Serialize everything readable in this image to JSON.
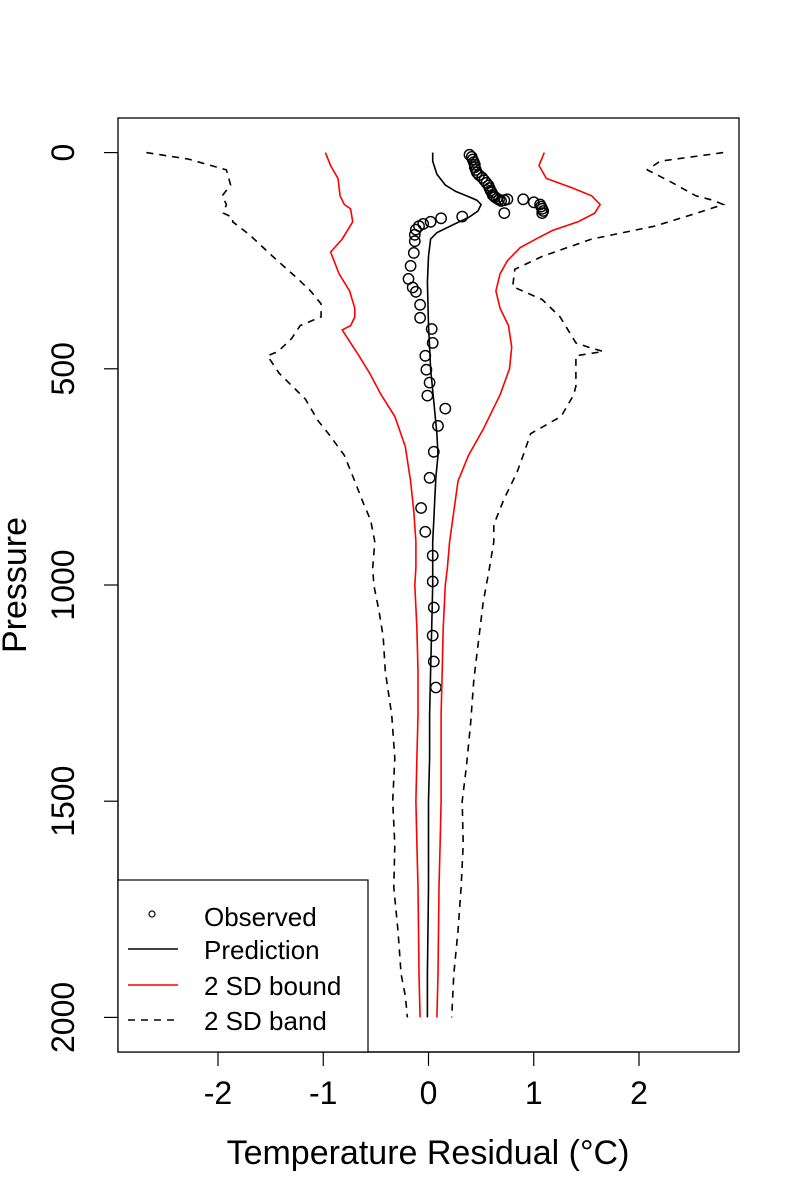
{
  "chart_data": {
    "type": "line",
    "title": "",
    "xlabel": "Temperature Residual (°C)",
    "ylabel": "Pressure",
    "xlim": [
      -2.95,
      2.95
    ],
    "ylim": [
      2080,
      -80
    ],
    "y_inverted": true,
    "grid": false,
    "legend_position": "bottom-left",
    "x_ticks": [
      -2,
      -1,
      0,
      1,
      2
    ],
    "x_tick_labels": [
      "-2",
      "-1",
      "0",
      "1",
      "2"
    ],
    "y_ticks": [
      0,
      500,
      1000,
      1500,
      2000
    ],
    "y_tick_labels": [
      "0",
      "500",
      "1000",
      "1500",
      "2000"
    ],
    "legend": [
      {
        "label": "Observed",
        "style": "point"
      },
      {
        "label": "Prediction",
        "style": "solid",
        "color": "#000000"
      },
      {
        "label": "2 SD bound",
        "style": "solid",
        "color": "#ff0000"
      },
      {
        "label": "2 SD band",
        "style": "dashed",
        "color": "#000000"
      }
    ],
    "series": [
      {
        "name": "Observed",
        "kind": "points",
        "color": "#000000",
        "x": [
          0.39,
          0.41,
          0.42,
          0.43,
          0.44,
          0.44,
          0.45,
          0.46,
          0.48,
          0.51,
          0.53,
          0.55,
          0.57,
          0.58,
          0.59,
          0.6,
          0.61,
          0.62,
          0.63,
          0.65,
          0.67,
          0.69,
          0.72,
          0.75,
          0.9,
          1.0,
          1.06,
          1.07,
          1.08,
          1.09,
          1.08,
          0.72,
          0.32,
          0.12,
          0.02,
          -0.05,
          -0.09,
          -0.12,
          -0.13,
          -0.13,
          -0.14,
          -0.17,
          -0.19,
          -0.15,
          -0.12,
          -0.08,
          -0.08,
          0.03,
          0.04,
          -0.03,
          -0.02,
          0.01,
          -0.01,
          0.16,
          0.09,
          0.05,
          0.01,
          -0.07,
          -0.03,
          0.04,
          0.04,
          0.05,
          0.04,
          0.05,
          0.07
        ],
        "y": [
          5,
          10,
          16,
          22,
          28,
          34,
          40,
          46,
          52,
          58,
          64,
          70,
          76,
          82,
          88,
          92,
          98,
          100,
          103,
          106,
          109,
          112,
          110,
          108,
          108,
          115,
          120,
          125,
          130,
          135,
          140,
          140,
          148,
          152,
          160,
          165,
          170,
          178,
          190,
          205,
          232,
          262,
          292,
          312,
          322,
          352,
          382,
          408,
          440,
          470,
          502,
          532,
          562,
          592,
          632,
          692,
          752,
          822,
          877,
          932,
          992,
          1052,
          1117,
          1177,
          1237
        ]
      },
      {
        "name": "Prediction",
        "kind": "line",
        "color": "#000000",
        "x": [
          0.04,
          0.04,
          0.08,
          0.16,
          0.26,
          0.36,
          0.46,
          0.5,
          0.47,
          0.38,
          0.25,
          0.08,
          0.02,
          0.0,
          -0.01,
          0.0,
          0.01,
          0.02,
          0.04,
          0.06,
          0.08,
          0.09,
          0.07,
          0.06,
          0.05,
          0.04,
          0.04,
          0.03,
          0.02,
          0.01,
          0.01,
          0.0,
          0.0,
          -0.01,
          -0.01
        ],
        "y": [
          0,
          20,
          50,
          75,
          90,
          100,
          110,
          120,
          135,
          150,
          165,
          185,
          200,
          240,
          300,
          400,
          450,
          500,
          550,
          600,
          650,
          700,
          750,
          800,
          850,
          900,
          1000,
          1100,
          1200,
          1300,
          1400,
          1500,
          1700,
          1900,
          2000
        ]
      },
      {
        "name": "2 SD bound",
        "kind": "line",
        "color": "#ff0000",
        "x": [
          -0.98,
          -0.93,
          -0.86,
          -0.84,
          -0.8,
          -0.74,
          -0.72,
          -0.82,
          -0.93,
          -0.85,
          -0.75,
          -0.7,
          -0.7,
          -0.74,
          -0.82,
          -0.74,
          -0.66,
          -0.56,
          -0.45,
          -0.32,
          -0.22,
          -0.17,
          -0.14,
          -0.12,
          -0.12,
          -0.13,
          -0.11,
          -0.1,
          -0.1,
          -0.11,
          -0.12,
          -0.11,
          -0.1,
          -0.09,
          -0.08
        ],
        "y": [
          0,
          30,
          60,
          100,
          120,
          130,
          160,
          200,
          230,
          280,
          320,
          360,
          380,
          400,
          410,
          440,
          470,
          510,
          560,
          610,
          680,
          760,
          830,
          900,
          960,
          1000,
          1100,
          1200,
          1300,
          1400,
          1500,
          1600,
          1700,
          1900,
          2000
        ]
      },
      {
        "name": "2 SD bound",
        "kind": "line",
        "color": "#ff0000",
        "x": [
          1.1,
          1.05,
          1.12,
          1.35,
          1.55,
          1.63,
          1.58,
          1.42,
          1.18,
          1.02,
          0.87,
          0.75,
          0.68,
          0.64,
          0.68,
          0.76,
          0.79,
          0.77,
          0.68,
          0.52,
          0.38,
          0.28,
          0.24,
          0.2,
          0.18,
          0.16,
          0.14,
          0.13,
          0.12,
          0.12,
          0.12,
          0.11,
          0.1,
          0.09,
          0.08
        ],
        "y": [
          0,
          30,
          60,
          80,
          100,
          120,
          140,
          160,
          180,
          200,
          220,
          250,
          280,
          320,
          360,
          400,
          450,
          500,
          560,
          640,
          700,
          760,
          830,
          900,
          960,
          1000,
          1100,
          1200,
          1300,
          1400,
          1500,
          1600,
          1700,
          1900,
          2000
        ]
      },
      {
        "name": "2 SD band",
        "kind": "line",
        "color": "#000000",
        "x": [
          -2.68,
          -2.28,
          -1.92,
          -1.88,
          -1.96,
          -1.92,
          -1.95,
          -1.86,
          -1.86,
          -1.7,
          -1.48,
          -1.25,
          -1.12,
          -1.02,
          -1.02,
          -1.22,
          -1.3,
          -1.43,
          -1.53,
          -1.42,
          -1.17,
          -1.05,
          -0.95,
          -0.8,
          -0.7,
          -0.62,
          -0.55,
          -0.51,
          -0.53,
          -0.52,
          -0.47,
          -0.43,
          -0.41,
          -0.35,
          -0.32,
          -0.34,
          -0.32,
          -0.33,
          -0.29,
          -0.26,
          -0.22,
          -0.2
        ],
        "y": [
          0,
          15,
          40,
          75,
          100,
          120,
          140,
          150,
          160,
          190,
          240,
          290,
          320,
          350,
          380,
          400,
          430,
          460,
          470,
          510,
          570,
          620,
          650,
          700,
          760,
          810,
          850,
          900,
          960,
          1000,
          1060,
          1120,
          1200,
          1300,
          1400,
          1500,
          1600,
          1700,
          1800,
          1900,
          1950,
          2000
        ]
      },
      {
        "name": "2 SD band",
        "kind": "line",
        "color": "#000000",
        "x": [
          2.8,
          2.2,
          2.08,
          2.32,
          2.54,
          2.7,
          2.8,
          2.55,
          2.15,
          1.55,
          1.08,
          0.82,
          0.8,
          1.08,
          1.25,
          1.35,
          1.4,
          1.52,
          1.66,
          1.4,
          1.4,
          1.4,
          1.38,
          1.26,
          0.97,
          0.9,
          0.84,
          0.72,
          0.62,
          0.62,
          0.58,
          0.52,
          0.48,
          0.43,
          0.4,
          0.36,
          0.32,
          0.33,
          0.31,
          0.28,
          0.24,
          0.22
        ],
        "y": [
          0,
          20,
          40,
          70,
          100,
          110,
          120,
          140,
          170,
          200,
          240,
          270,
          310,
          340,
          380,
          420,
          440,
          450,
          460,
          470,
          500,
          540,
          560,
          610,
          650,
          700,
          740,
          800,
          860,
          900,
          960,
          1040,
          1120,
          1220,
          1320,
          1420,
          1500,
          1600,
          1700,
          1800,
          1900,
          2000
        ]
      }
    ]
  }
}
